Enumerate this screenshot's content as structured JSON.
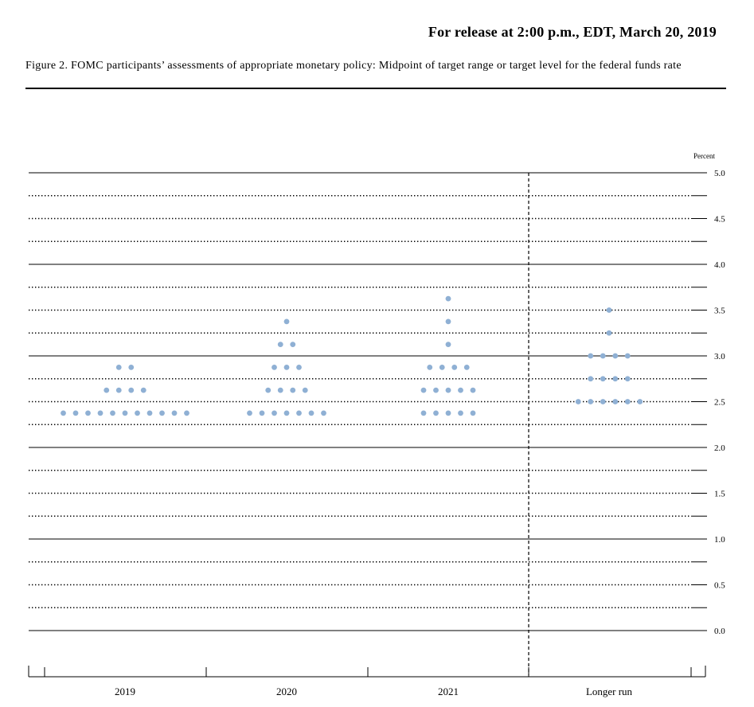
{
  "header": {
    "release_text": "For release at 2:00 p.m., EDT, March 20, 2019"
  },
  "caption": "Figure 2. FOMC participants’ assessments of appropriate monetary policy: Midpoint of target range or target level for the federal funds rate",
  "chart_data": {
    "type": "scatter",
    "title": "Figure 2. FOMC participants’ assessments of appropriate monetary policy: Midpoint of target range or target level for the federal funds rate",
    "ylabel": "Percent",
    "ylim": [
      0.0,
      5.0
    ],
    "yticks": [
      "0.0",
      "0.5",
      "1.0",
      "1.5",
      "2.0",
      "2.5",
      "3.0",
      "3.5",
      "4.0",
      "4.5",
      "5.0"
    ],
    "categories": [
      "2019",
      "2020",
      "2021",
      "Longer run"
    ],
    "dot_color": "#8fb0d4",
    "grid": "solid at whole percents, dotted at quarter points",
    "separator": "dashed vertical line before Longer run",
    "dots": [
      {
        "category": "2019",
        "values": [
          {
            "y": 2.875,
            "count": 2
          },
          {
            "y": 2.625,
            "count": 4
          },
          {
            "y": 2.375,
            "count": 11
          }
        ]
      },
      {
        "category": "2020",
        "values": [
          {
            "y": 3.375,
            "count": 1
          },
          {
            "y": 3.125,
            "count": 2
          },
          {
            "y": 2.875,
            "count": 3
          },
          {
            "y": 2.625,
            "count": 4
          },
          {
            "y": 2.375,
            "count": 7
          }
        ]
      },
      {
        "category": "2021",
        "values": [
          {
            "y": 3.625,
            "count": 1
          },
          {
            "y": 3.375,
            "count": 1
          },
          {
            "y": 3.125,
            "count": 1
          },
          {
            "y": 2.875,
            "count": 4
          },
          {
            "y": 2.625,
            "count": 5
          },
          {
            "y": 2.375,
            "count": 5
          }
        ]
      },
      {
        "category": "Longer run",
        "values": [
          {
            "y": 3.5,
            "count": 1
          },
          {
            "y": 3.25,
            "count": 1
          },
          {
            "y": 3.0,
            "count": 4
          },
          {
            "y": 2.75,
            "count": 4
          },
          {
            "y": 2.5,
            "count": 6
          }
        ]
      }
    ]
  }
}
